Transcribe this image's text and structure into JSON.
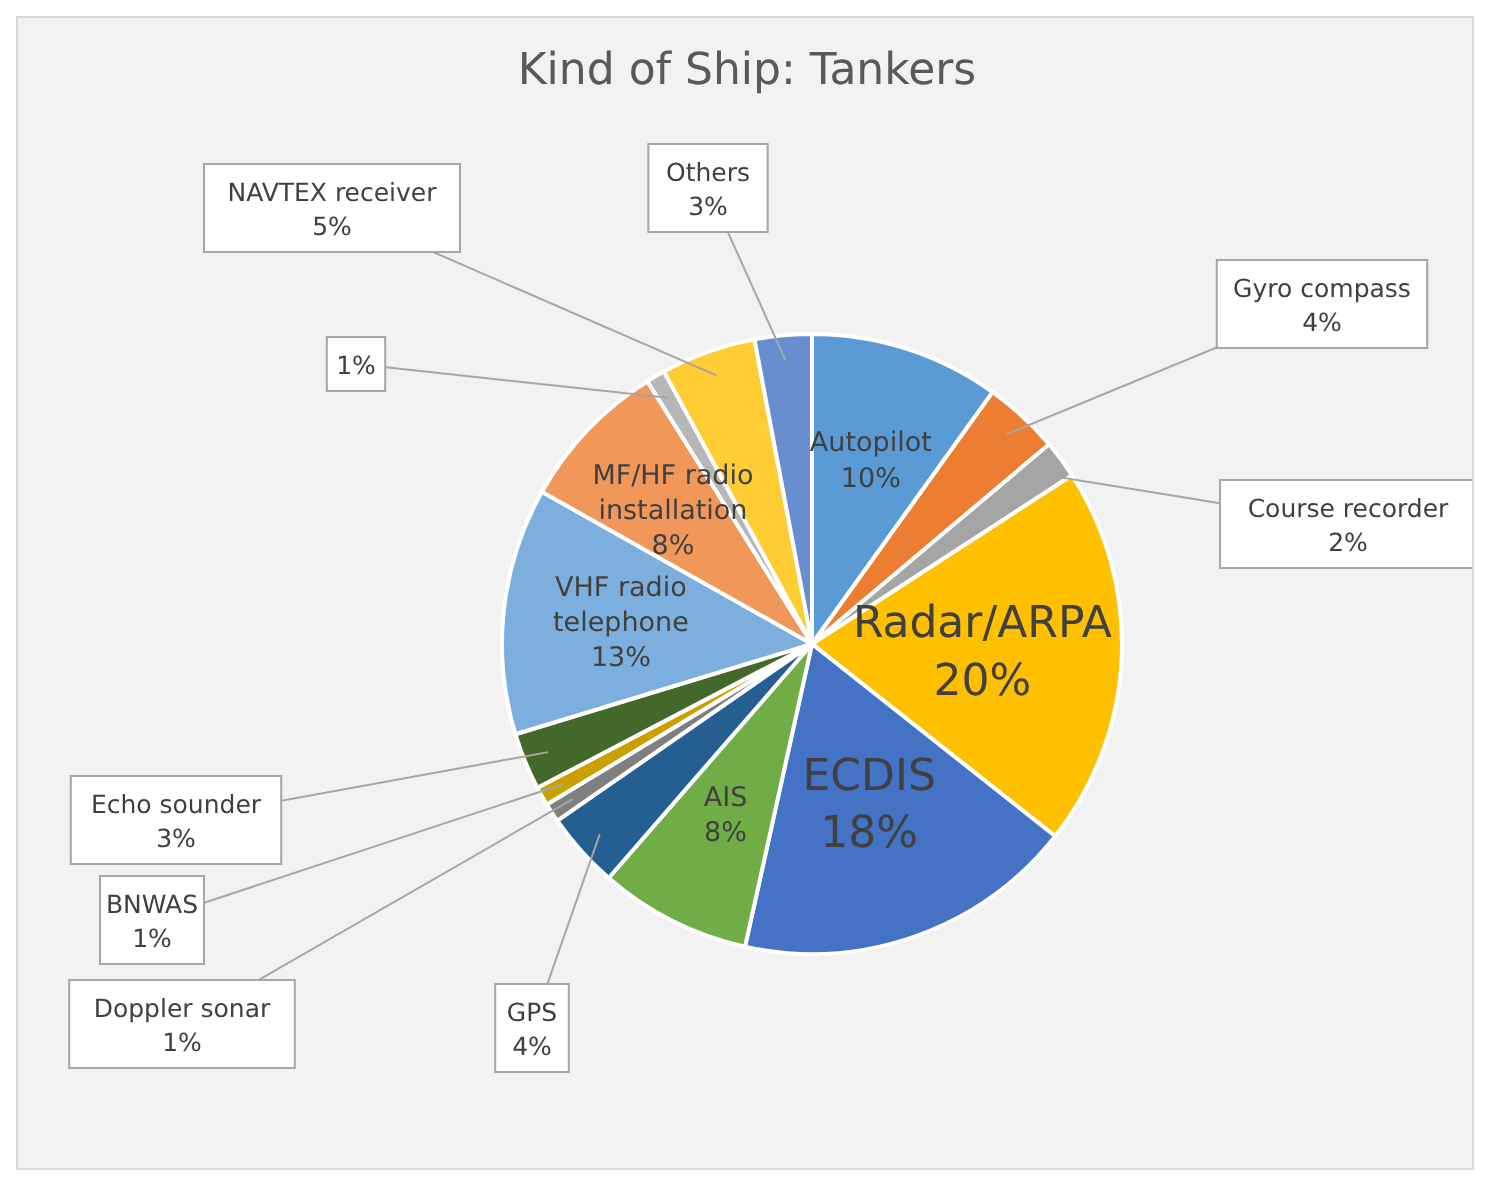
{
  "chart_data": {
    "type": "pie",
    "title": "Kind of Ship: Tankers",
    "categories": [
      "Autopilot",
      "Gyro compass",
      "Course recorder",
      "Radar/ARPA",
      "ECDIS",
      "AIS",
      "GPS",
      "Doppler sonar",
      "BNWAS",
      "Echo sounder",
      "VHF radio telephone",
      "MF/HF radio installation",
      null,
      "NAVTEX receiver",
      "Others"
    ],
    "values": [
      10,
      4,
      2,
      20,
      18,
      8,
      4,
      1,
      1,
      3,
      13,
      8,
      1,
      5,
      3
    ],
    "value_labels": [
      "10%",
      "4%",
      "2%",
      "20%",
      "18%",
      "8%",
      "4%",
      "1%",
      "1%",
      "3%",
      "13%",
      "8%",
      "1%",
      "5%",
      "3%"
    ],
    "colors": [
      "#5b9bd5",
      "#ed7d31",
      "#a5a5a5",
      "#ffc000",
      "#4472c4",
      "#70ad47",
      "#255e91",
      "#7f7f7f",
      "#c9a000",
      "#43682b",
      "#7cafdd",
      "#f1975a",
      "#b7b7b7",
      "#ffcd33",
      "#698ed0"
    ],
    "legend": false
  }
}
